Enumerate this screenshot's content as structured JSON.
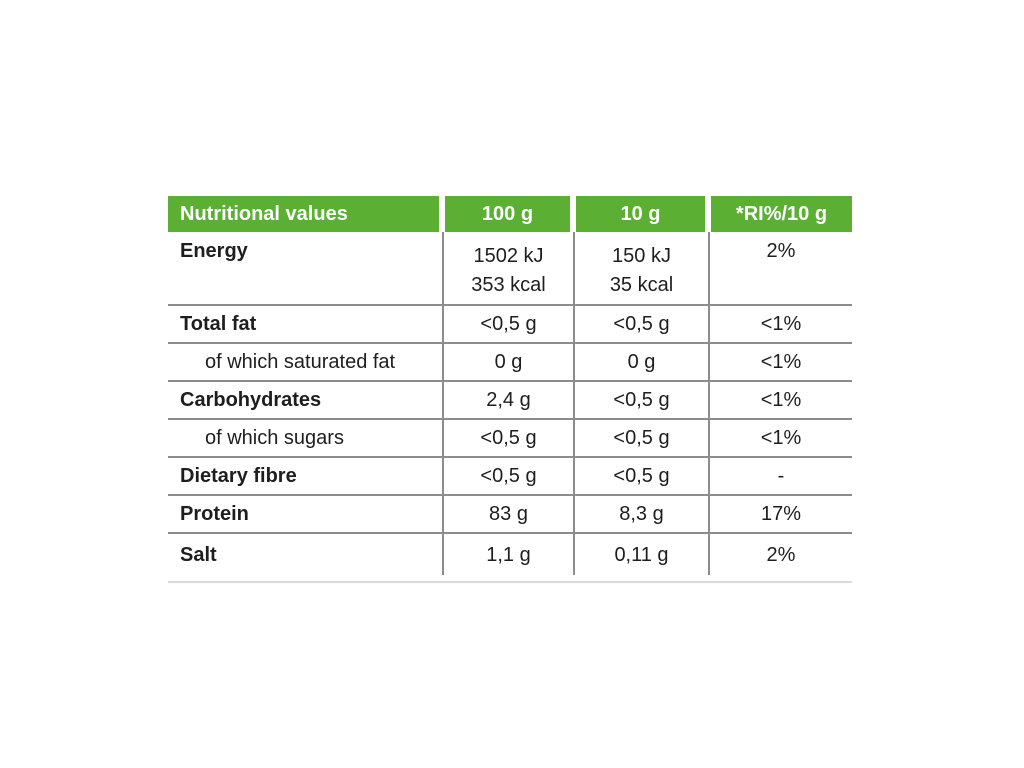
{
  "table": {
    "header": {
      "bg_color": "#5bb033",
      "text_color": "#ffffff",
      "columns": [
        "Nutritional values",
        "100 g",
        "10 g",
        "*RI%/10 g"
      ]
    },
    "grid_line_color": "#8c8c8c",
    "rows": [
      {
        "label": "Energy",
        "indent": false,
        "v100": [
          "1502 kJ",
          "353 kcal"
        ],
        "v10": [
          "150 kJ",
          "35 kcal"
        ],
        "ri": "2%"
      },
      {
        "label": "Total fat",
        "indent": false,
        "v100": "<0,5 g",
        "v10": "<0,5 g",
        "ri": "<1%"
      },
      {
        "label": "of which saturated fat",
        "indent": true,
        "v100": "0 g",
        "v10": "0 g",
        "ri": "<1%"
      },
      {
        "label": "Carbohydrates",
        "indent": false,
        "v100": "2,4 g",
        "v10": "<0,5 g",
        "ri": "<1%"
      },
      {
        "label": "of which sugars",
        "indent": true,
        "v100": "<0,5 g",
        "v10": "<0,5 g",
        "ri": "<1%"
      },
      {
        "label": "Dietary fibre",
        "indent": false,
        "v100": "<0,5 g",
        "v10": "<0,5 g",
        "ri": "-"
      },
      {
        "label": "Protein",
        "indent": false,
        "v100": "83 g",
        "v10": "8,3 g",
        "ri": "17%"
      },
      {
        "label": "Salt",
        "indent": false,
        "v100": "1,1 g",
        "v10": "0,11 g",
        "ri": "2%"
      }
    ]
  }
}
